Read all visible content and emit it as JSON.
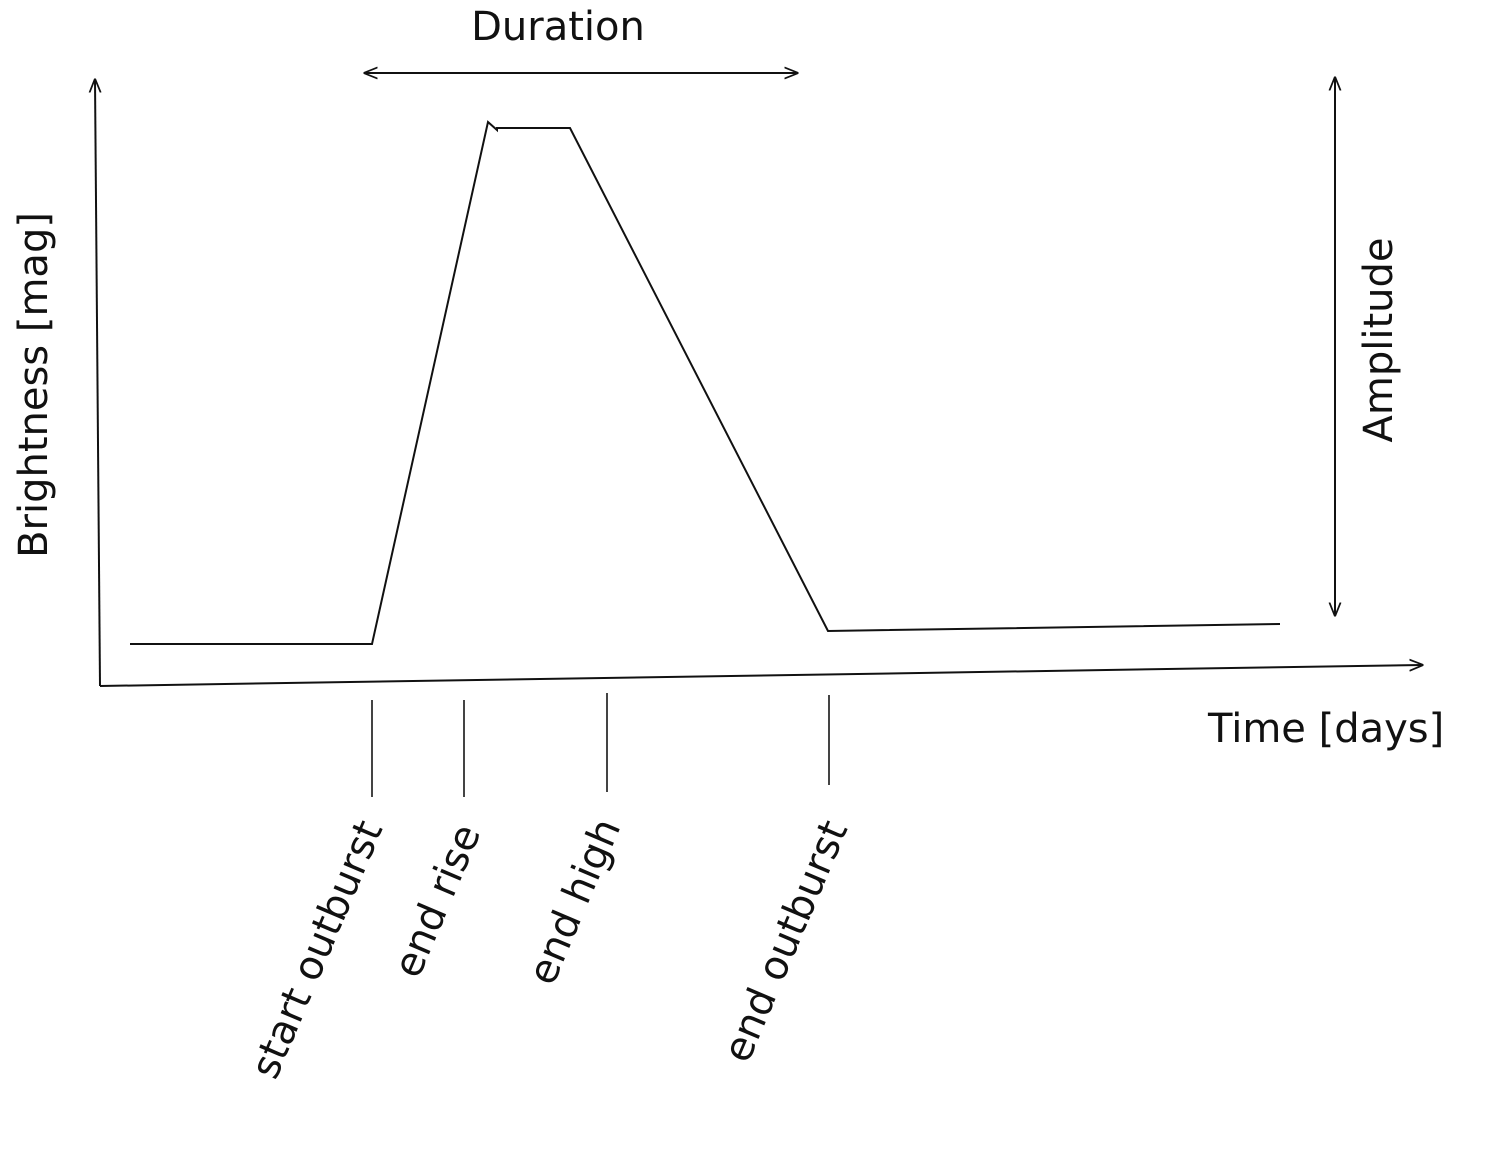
{
  "title": "Duration",
  "amplitude_label": "Amplitude",
  "y_axis_label": "Brightness [mag]",
  "x_axis_label": "Time [days]",
  "markers": [
    {
      "label": "start outburst"
    },
    {
      "label": "end rise"
    },
    {
      "label": "end high"
    },
    {
      "label": "end outburst"
    }
  ]
}
